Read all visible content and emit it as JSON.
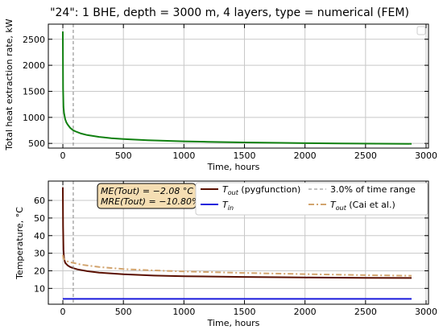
{
  "chart_data": [
    {
      "type": "line",
      "title": "\"24\": 1 BHE, depth = 3000 m, 4 layers, type = numerical (FEM)",
      "xlabel": "Time, hours",
      "ylabel": "Total heat extraction rate, kW",
      "xlim": [
        -120,
        3020
      ],
      "ylim": [
        410,
        2790
      ],
      "xticks": [
        0,
        500,
        1000,
        1500,
        2000,
        2500,
        3000
      ],
      "yticks": [
        500,
        1000,
        1500,
        2000,
        2500
      ],
      "grid": true,
      "legend": "top-right (empty)",
      "series": [
        {
          "color": "#108010",
          "x": [
            0,
            2,
            5,
            10,
            20,
            30,
            40,
            60,
            80,
            100,
            150,
            200,
            300,
            400,
            500,
            700,
            1000,
            1200,
            1500,
            1800,
            2000,
            2300,
            2600,
            2880
          ],
          "y": [
            2650,
            1550,
            1200,
            1080,
            960,
            900,
            860,
            800,
            760,
            735,
            690,
            660,
            625,
            600,
            585,
            562,
            540,
            530,
            518,
            510,
            505,
            500,
            495,
            492
          ]
        }
      ],
      "vlines": [
        {
          "x": 86,
          "style": "dashed",
          "color": "#808080"
        }
      ]
    },
    {
      "type": "line",
      "xlabel": "Time, hours",
      "ylabel": "Temperature, °C",
      "xlim": [
        -120,
        3020
      ],
      "ylim": [
        1,
        71
      ],
      "xticks": [
        0,
        500,
        1000,
        1500,
        2000,
        2500,
        3000
      ],
      "yticks": [
        10,
        20,
        30,
        40,
        50,
        60
      ],
      "grid": true,
      "legend": "top-right, 2 columns",
      "annotation": {
        "line1": "ME(Tout) = −2.08 °C",
        "line2": "MRE(Tout) = −10.80%"
      },
      "series": [
        {
          "name": "Tout (pygfunction)",
          "legend_main": "T",
          "legend_sub": "out",
          "legend_rest": " (pygfunction)",
          "color": "#5a0f00",
          "style": "solid",
          "x": [
            0,
            2,
            5,
            10,
            20,
            40,
            60,
            86,
            120,
            200,
            300,
            500,
            750,
            1000,
            1500,
            2000,
            2500,
            2880
          ],
          "y": [
            67.5,
            45,
            32,
            27,
            24.5,
            23,
            22.2,
            21.5,
            20.8,
            19.8,
            19,
            18,
            17.3,
            16.9,
            16.5,
            16.2,
            16,
            15.9
          ]
        },
        {
          "name": "Tin",
          "legend_main": "T",
          "legend_sub": "in",
          "legend_rest": "",
          "color": "#1a1adc",
          "style": "solid",
          "x": [
            0,
            2880
          ],
          "y": [
            4,
            4
          ]
        },
        {
          "name": "3.0% of time range",
          "legend_main": "3.0% of time range",
          "legend_sub": "",
          "legend_rest": "",
          "color": "#808080",
          "style": "dashed",
          "vline_x": 86
        },
        {
          "name": "Tout (Cai et al.)",
          "legend_main": "T",
          "legend_sub": "out",
          "legend_rest": " (Cai et al.)",
          "color": "#d2a46e",
          "style": "dashdot",
          "x": [
            0,
            5,
            20,
            50,
            86,
            150,
            300,
            500,
            750,
            1000,
            1500,
            2000,
            2500,
            2880
          ],
          "y": [
            29,
            27,
            26,
            25,
            24.5,
            23.5,
            22.2,
            21,
            20.2,
            19.6,
            18.8,
            18.1,
            17.5,
            17.2
          ]
        }
      ]
    }
  ]
}
